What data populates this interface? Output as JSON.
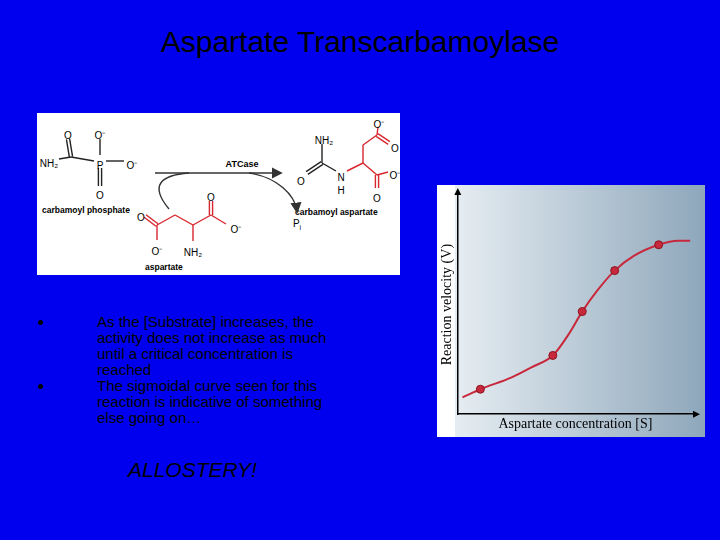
{
  "slide": {
    "title": "Aspartate Transcarbamoylase",
    "bullets": [
      [
        "As the [Substrate] increases, the",
        "activity does not increase as much",
        "until a critical concentration is",
        "reached"
      ],
      [
        "The sigmoidal curve seen for this",
        "reaction is indicative of something",
        "else going on…"
      ]
    ],
    "emphasis": "ALLOSTERY!"
  },
  "diagram": {
    "enzyme": "ATCase",
    "byproduct": {
      "main": "P",
      "sub": "i"
    },
    "molecules": [
      {
        "name": "carbamoyl phosphate",
        "atoms": [
          "O",
          "NH₂",
          "P",
          "O⁻",
          "O⁻",
          "O"
        ]
      },
      {
        "name": "aspartate",
        "atoms": [
          "O",
          "O⁻",
          "NH₂",
          "O",
          "O⁻"
        ]
      },
      {
        "name": "carbamoyl aspartate",
        "atoms": [
          "NH₂",
          "O",
          "N",
          "H",
          "O⁻",
          "O",
          "O⁻",
          "O"
        ]
      }
    ]
  },
  "chart_data": {
    "type": "line",
    "x_label": "Aspartate concentration [S]",
    "y_label": "Reaction velocity (V)",
    "xlim": [
      0,
      10
    ],
    "ylim": [
      0,
      10
    ],
    "tick_labels": false,
    "grid": false,
    "series": [
      {
        "type": "line",
        "marker": "none",
        "color": "#c8283c",
        "x": [
          0.2,
          0.96,
          2.29,
          3.13,
          4.04,
          4.71,
          5.29,
          5.96,
          6.67,
          7.5,
          8.54,
          9.38,
          9.88
        ],
        "values": [
          0.77,
          1.14,
          1.68,
          2.14,
          2.68,
          3.64,
          4.68,
          5.68,
          6.55,
          7.23,
          7.73,
          7.91,
          7.91
        ]
      },
      {
        "type": "scatter",
        "marker": "circle",
        "color": "#c8283c",
        "x": [
          0.96,
          4.04,
          5.29,
          6.67,
          8.54
        ],
        "values": [
          1.14,
          2.68,
          4.68,
          6.55,
          7.73
        ]
      }
    ]
  }
}
